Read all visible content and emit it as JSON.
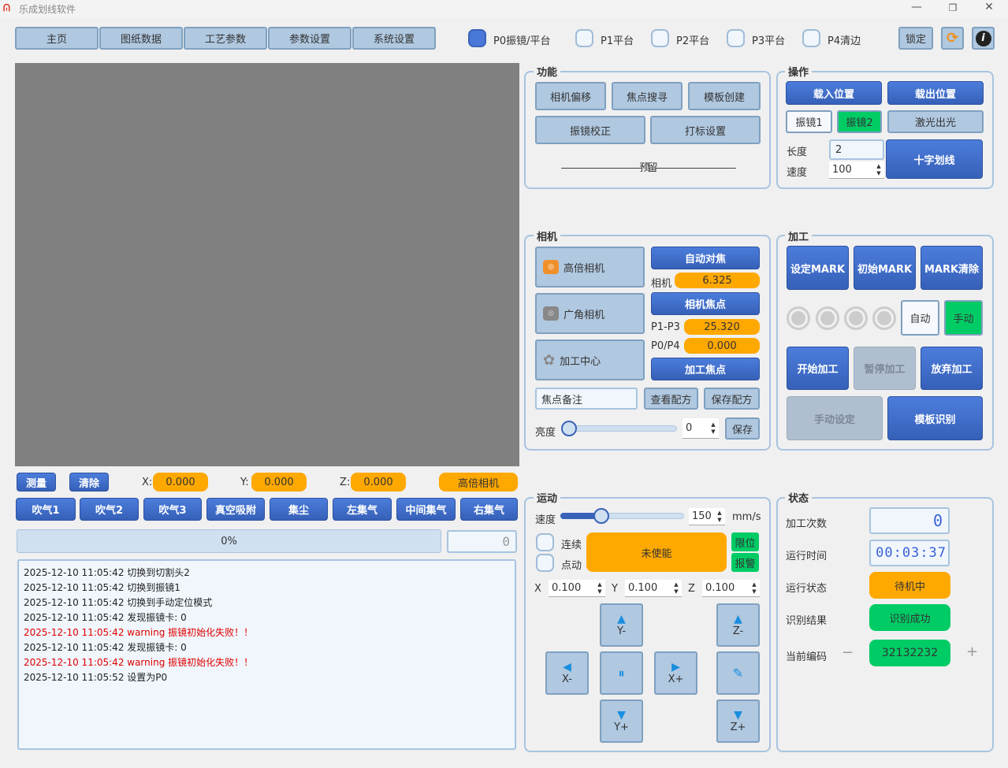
{
  "window": {
    "title": "乐成划线软件",
    "minimize": "—",
    "maximize": "❐",
    "close": "✕"
  },
  "nav": [
    "主页",
    "图纸数据",
    "工艺参数",
    "参数设置",
    "系统设置"
  ],
  "platforms": [
    {
      "label": "P0振镜/平台",
      "checked": true
    },
    {
      "label": "P1平台",
      "checked": false
    },
    {
      "label": "P2平台",
      "checked": false
    },
    {
      "label": "P3平台",
      "checked": false
    },
    {
      "label": "P4清边",
      "checked": false
    }
  ],
  "toolbar": {
    "lock": "锁定",
    "refresh_icon": "refresh-icon",
    "info_icon": "info-icon"
  },
  "colors": {
    "accent": "#3a62b8",
    "orange": "#ffa800",
    "green": "#00cc66",
    "canvas": "#808080",
    "light_button": "#b0c8e0"
  },
  "coords": {
    "measure": "测量",
    "clear": "清除",
    "x_label": "X:",
    "x": "0.000",
    "y_label": "Y:",
    "y": "0.000",
    "z_label": "Z:",
    "z": "0.000",
    "camera": "高倍相机"
  },
  "air": [
    "吹气1",
    "吹气2",
    "吹气3",
    "真空吸附",
    "集尘",
    "左集气",
    "中间集气",
    "右集气"
  ],
  "progress": {
    "value": 0,
    "text": "0%",
    "counter": "0"
  },
  "log": [
    {
      "text": "2025-12-10 11:05:42  切换到切割头2",
      "error": false
    },
    {
      "text": "2025-12-10 11:05:42  切换到振镜1",
      "error": false
    },
    {
      "text": "2025-12-10 11:05:42  切换到手动定位模式",
      "error": false
    },
    {
      "text": "2025-12-10 11:05:42  发现振镜卡: 0",
      "error": false
    },
    {
      "text": "2025-12-10 11:05:42  warning 振镜初始化失败！！",
      "error": true
    },
    {
      "text": "2025-12-10 11:05:42  发现振镜卡: 0",
      "error": false
    },
    {
      "text": "2025-12-10 11:05:42  warning 振镜初始化失败！！",
      "error": true
    },
    {
      "text": "2025-12-10 11:05:52  设置为P0",
      "error": false
    }
  ],
  "func": {
    "title": "功能",
    "buttons": [
      "相机偏移",
      "焦点搜寻",
      "模板创建",
      "振镜校正",
      "打标设置"
    ],
    "reserved": "——————————预留——————————"
  },
  "ops": {
    "title": "操作",
    "load": "载入位置",
    "unload": "载出位置",
    "galvo1": "振镜1",
    "galvo2": "振镜2",
    "laser": "激光出光",
    "length_label": "长度",
    "length": "2",
    "speed_label": "速度",
    "speed": "100",
    "cross": "十字划线"
  },
  "camera": {
    "title": "相机",
    "high": "高倍相机",
    "wide": "广角相机",
    "center": "加工中心",
    "autofocus": "自动对焦",
    "cam_label": "相机",
    "cam_value": "6.325",
    "cam_focus": "相机焦点",
    "p13_label": "P1-P3",
    "p13": "25.320",
    "p04_label": "P0/P4",
    "p04": "0.000",
    "proc_focus": "加工焦点",
    "note_placeholder": "焦点备注",
    "view": "查看配方",
    "save_recipe": "保存配方",
    "brightness_label": "亮度",
    "brightness": "0",
    "save": "保存"
  },
  "process": {
    "title": "加工",
    "set_mark": "设定MARK",
    "init_mark": "初始MARK",
    "clear_mark": "MARK清除",
    "auto": "自动",
    "manual": "手动",
    "start": "开始加工",
    "pause": "暂停加工",
    "abort": "放弃加工",
    "manual_set": "手动设定",
    "template": "模板识别"
  },
  "motion": {
    "title": "运动",
    "speed_label": "速度",
    "speed": "150",
    "speed_max": 1000,
    "unit": "mm/s",
    "continuous": "连续",
    "jog": "点动",
    "enable": "未使能",
    "limit": "限位",
    "alarm": "报警",
    "x_label": "X",
    "x": "0.100",
    "y_label": "Y",
    "y": "0.100",
    "z_label": "Z",
    "z": "0.100",
    "y_minus": "Y-",
    "y_plus": "Y+",
    "x_minus": "X-",
    "x_plus": "X+",
    "z_minus": "Z-",
    "z_plus": "Z+"
  },
  "status": {
    "title": "状态",
    "count_label": "加工次数",
    "count": "0",
    "time_label": "运行时间",
    "time": "00:03:37",
    "state_label": "运行状态",
    "state": "待机中",
    "recog_label": "识别结果",
    "recog": "识别成功",
    "code_label": "当前编码",
    "code": "32132232",
    "minus": "−",
    "plus": "+"
  }
}
